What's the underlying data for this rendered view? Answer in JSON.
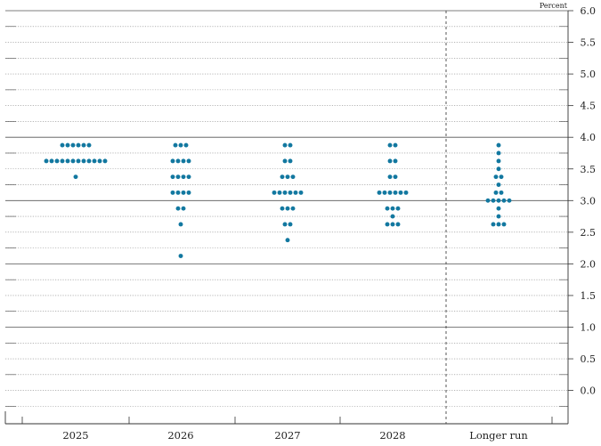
{
  "chart_data": {
    "type": "scatter",
    "subtype": "dot-plot",
    "unit_label": "Percent",
    "categories": [
      "2025",
      "2026",
      "2027",
      "2028",
      "Longer run"
    ],
    "ylim": [
      -0.375,
      6.0
    ],
    "yticks": [
      {
        "value": 6.0,
        "label": "6.0"
      },
      {
        "value": 5.5,
        "label": "5.5"
      },
      {
        "value": 5.0,
        "label": "5.0"
      },
      {
        "value": 4.5,
        "label": "4.5"
      },
      {
        "value": 4.0,
        "label": "4.0"
      },
      {
        "value": 3.5,
        "label": "3.5"
      },
      {
        "value": 3.0,
        "label": "3.0"
      },
      {
        "value": 2.5,
        "label": "2.5"
      },
      {
        "value": 2.0,
        "label": "2.0"
      },
      {
        "value": 1.5,
        "label": "1.5"
      },
      {
        "value": 1.0,
        "label": "1.0"
      },
      {
        "value": 0.5,
        "label": "0.5"
      },
      {
        "value": 0.0,
        "label": "0.0"
      }
    ],
    "dot_color": "#1278a0",
    "series": [
      {
        "category": "2025",
        "dots": [
          {
            "y": 3.875,
            "count": 6
          },
          {
            "y": 3.625,
            "count": 12
          },
          {
            "y": 3.375,
            "count": 1
          }
        ]
      },
      {
        "category": "2026",
        "dots": [
          {
            "y": 3.875,
            "count": 3
          },
          {
            "y": 3.625,
            "count": 4
          },
          {
            "y": 3.375,
            "count": 4
          },
          {
            "y": 3.125,
            "count": 4
          },
          {
            "y": 2.875,
            "count": 2
          },
          {
            "y": 2.625,
            "count": 1
          },
          {
            "y": 2.125,
            "count": 1
          }
        ]
      },
      {
        "category": "2027",
        "dots": [
          {
            "y": 3.875,
            "count": 2
          },
          {
            "y": 3.625,
            "count": 2
          },
          {
            "y": 3.375,
            "count": 3
          },
          {
            "y": 3.125,
            "count": 6
          },
          {
            "y": 2.875,
            "count": 3
          },
          {
            "y": 2.625,
            "count": 2
          },
          {
            "y": 2.375,
            "count": 1
          }
        ]
      },
      {
        "category": "2028",
        "dots": [
          {
            "y": 3.875,
            "count": 2
          },
          {
            "y": 3.625,
            "count": 2
          },
          {
            "y": 3.375,
            "count": 2
          },
          {
            "y": 3.125,
            "count": 6
          },
          {
            "y": 2.875,
            "count": 3
          },
          {
            "y": 2.75,
            "count": 1
          },
          {
            "y": 2.625,
            "count": 3
          }
        ]
      },
      {
        "category": "Longer run",
        "dots": [
          {
            "y": 3.875,
            "count": 1
          },
          {
            "y": 3.75,
            "count": 1
          },
          {
            "y": 3.625,
            "count": 1
          },
          {
            "y": 3.5,
            "count": 1
          },
          {
            "y": 3.375,
            "count": 2
          },
          {
            "y": 3.25,
            "count": 1
          },
          {
            "y": 3.125,
            "count": 2
          },
          {
            "y": 3.0,
            "count": 5
          },
          {
            "y": 2.875,
            "count": 1
          },
          {
            "y": 2.75,
            "count": 1
          },
          {
            "y": 2.625,
            "count": 3
          }
        ]
      }
    ]
  }
}
